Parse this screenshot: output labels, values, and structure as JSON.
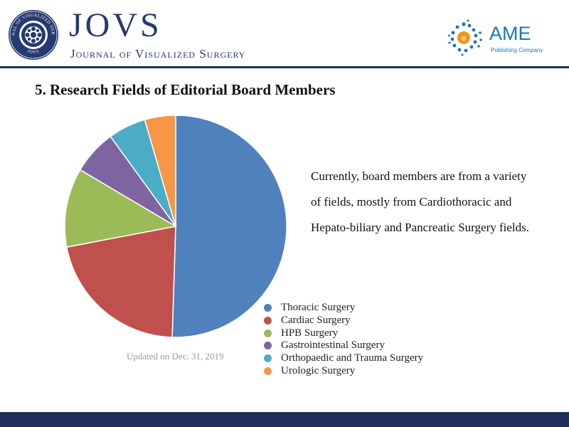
{
  "header": {
    "journal_title": "JOVS",
    "journal_subtitle": "Journal of Visualized Surgery",
    "seal_text_top": "JOURNAL OF VISUALIZED SURGERY",
    "seal_text_bottom": "JOVS",
    "publisher_name": "AME",
    "publisher_subtitle": "Publishing Company",
    "seal_icon": "journal-seal-icon",
    "publisher_icon": "ame-dots-logo-icon",
    "brand_color": "#253a70",
    "publisher_color": "#1c75bc"
  },
  "section": {
    "title": "5. Research Fields of Editorial Board Members"
  },
  "description": {
    "lines": [
      "Currently, board members are from a variety",
      "of fields, mostly from Cardiothoracic and",
      "Hepato-biliary and Pancreatic Surgery fields."
    ]
  },
  "note": {
    "updated": "Updated on Dec. 31, 2019"
  },
  "chart_data": {
    "type": "pie",
    "title": "",
    "legend_position": "bottom-right",
    "start_angle_deg": 0,
    "direction": "clockwise",
    "series": [
      {
        "name": "Thoracic Surgery",
        "value": 50.5,
        "color": "#4f81bd"
      },
      {
        "name": "Cardiac Surgery",
        "value": 21.5,
        "color": "#c0504d"
      },
      {
        "name": "HPB Surgery",
        "value": 11.5,
        "color": "#9bbb59"
      },
      {
        "name": "Gastrointestinal Surgery",
        "value": 6.5,
        "color": "#8064a2"
      },
      {
        "name": "Orthopaedic and Trauma Surgery",
        "value": 5.5,
        "color": "#4bacc6"
      },
      {
        "name": "Urologic Surgery",
        "value": 4.5,
        "color": "#f79646"
      }
    ]
  }
}
